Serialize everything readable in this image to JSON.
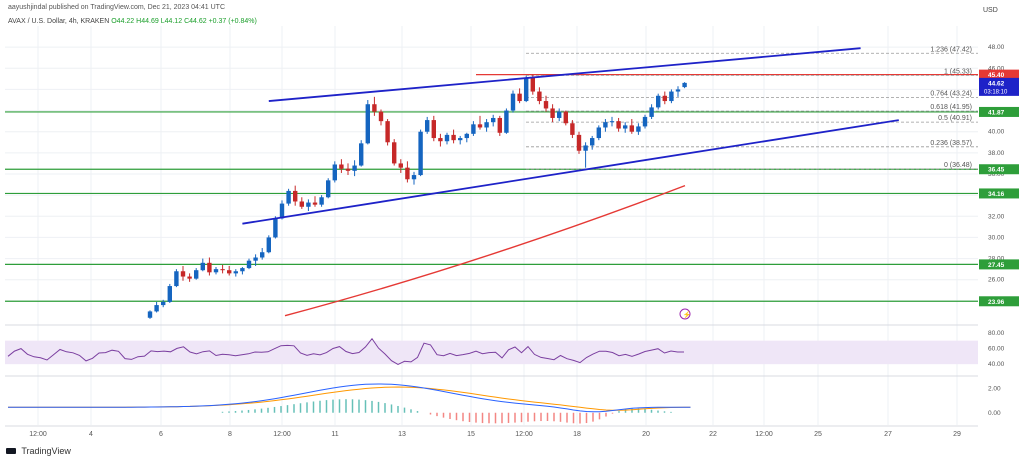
{
  "header": {
    "publisher": "aayushjindal published on TradingView.com, Dec 21, 2023 04:41 UTC",
    "symbol": "AVAX / U.S. Dollar, 4h, KRAKEN",
    "open": "O44.22",
    "high": "H44.69",
    "low": "L44.12",
    "close": "C44.62",
    "change": "+0.37 (+0.84%)",
    "currency": "USD"
  },
  "footer": {
    "brand": "TradingView"
  },
  "colors": {
    "up": "#26a69a",
    "down": "#ef5350",
    "candle_up": "#1565c0",
    "candle_down": "#c62828",
    "trendline": "#1e22c8",
    "support": "#2e9e3a",
    "ma": "#e53935",
    "resistance": "#e53935",
    "fib": "#999999",
    "rsi": "#7b3fa0",
    "rsi_band": "#efe6f7",
    "price_label": "#1e22c8"
  },
  "chart_data": {
    "type": "candlestick",
    "interval": "4h",
    "price_axis": {
      "min": 22,
      "max": 50,
      "ticks": [
        24.0,
        26.0,
        28.0,
        30.0,
        32.0,
        34.0,
        36.0,
        38.0,
        40.0,
        42.0,
        44.0,
        46.0,
        48.0
      ]
    },
    "time_axis_labels": [
      "12:00",
      "4",
      "6",
      "8",
      "12:00",
      "11",
      "13",
      "15",
      "12:00",
      "18",
      "20",
      "22",
      "12:00",
      "25",
      "27",
      "29"
    ],
    "candles": [
      [
        22.4,
        23.1,
        22.3,
        23.0
      ],
      [
        23.0,
        23.9,
        22.9,
        23.6
      ],
      [
        23.6,
        24.1,
        23.4,
        23.9
      ],
      [
        23.9,
        25.6,
        23.8,
        25.4
      ],
      [
        25.4,
        27.0,
        25.3,
        26.8
      ],
      [
        26.8,
        27.3,
        25.9,
        26.3
      ],
      [
        26.3,
        26.6,
        25.8,
        26.1
      ],
      [
        26.1,
        27.1,
        26.0,
        26.9
      ],
      [
        26.9,
        28.0,
        26.8,
        27.6
      ],
      [
        27.6,
        28.1,
        26.4,
        26.7
      ],
      [
        26.7,
        27.2,
        26.5,
        27.0
      ],
      [
        27.0,
        27.4,
        26.6,
        26.9
      ],
      [
        26.9,
        27.3,
        26.4,
        26.6
      ],
      [
        26.6,
        27.0,
        26.3,
        26.8
      ],
      [
        26.8,
        27.2,
        26.5,
        27.1
      ],
      [
        27.1,
        28.0,
        27.0,
        27.8
      ],
      [
        27.8,
        28.4,
        27.3,
        28.1
      ],
      [
        28.1,
        29.0,
        27.9,
        28.6
      ],
      [
        28.6,
        30.2,
        28.5,
        30.0
      ],
      [
        30.0,
        32.0,
        29.9,
        31.8
      ],
      [
        31.8,
        33.5,
        31.7,
        33.2
      ],
      [
        33.2,
        34.6,
        33.0,
        34.4
      ],
      [
        34.4,
        34.9,
        33.0,
        33.4
      ],
      [
        33.4,
        33.8,
        32.7,
        32.9
      ],
      [
        32.9,
        33.6,
        32.5,
        33.3
      ],
      [
        33.3,
        33.9,
        32.9,
        33.1
      ],
      [
        33.1,
        34.0,
        32.9,
        33.8
      ],
      [
        33.8,
        35.6,
        33.7,
        35.4
      ],
      [
        35.4,
        37.2,
        35.2,
        36.9
      ],
      [
        36.9,
        37.4,
        36.1,
        36.5
      ],
      [
        36.5,
        37.0,
        35.9,
        36.3
      ],
      [
        36.3,
        37.3,
        35.8,
        36.8
      ],
      [
        36.8,
        39.2,
        36.7,
        38.9
      ],
      [
        38.9,
        43.0,
        38.8,
        42.6
      ],
      [
        42.6,
        43.3,
        41.5,
        41.9
      ],
      [
        41.9,
        42.1,
        40.6,
        41.0
      ],
      [
        41.0,
        41.2,
        38.7,
        39.0
      ],
      [
        39.0,
        39.3,
        36.8,
        37.0
      ],
      [
        37.0,
        37.4,
        36.1,
        36.6
      ],
      [
        36.6,
        37.2,
        35.2,
        35.5
      ],
      [
        35.5,
        36.2,
        35.0,
        35.9
      ],
      [
        35.9,
        40.2,
        35.8,
        40.0
      ],
      [
        40.0,
        41.4,
        39.8,
        41.1
      ],
      [
        41.1,
        41.5,
        39.1,
        39.4
      ],
      [
        39.4,
        39.8,
        38.6,
        39.1
      ],
      [
        39.1,
        39.9,
        38.8,
        39.7
      ],
      [
        39.7,
        40.2,
        38.9,
        39.2
      ],
      [
        39.2,
        39.6,
        38.8,
        39.4
      ],
      [
        39.4,
        39.9,
        39.0,
        39.8
      ],
      [
        39.8,
        41.0,
        39.6,
        40.7
      ],
      [
        40.7,
        41.5,
        40.2,
        40.4
      ],
      [
        40.4,
        41.2,
        40.0,
        40.9
      ],
      [
        40.9,
        41.6,
        40.5,
        41.3
      ],
      [
        41.3,
        41.5,
        39.6,
        39.9
      ],
      [
        39.9,
        42.2,
        39.8,
        42.0
      ],
      [
        42.0,
        43.9,
        41.8,
        43.6
      ],
      [
        43.6,
        44.1,
        42.7,
        42.9
      ],
      [
        42.9,
        45.3,
        42.8,
        45.1
      ],
      [
        45.1,
        45.4,
        43.5,
        43.8
      ],
      [
        43.8,
        44.2,
        42.6,
        42.9
      ],
      [
        42.9,
        43.4,
        41.9,
        42.2
      ],
      [
        42.2,
        42.6,
        40.9,
        41.3
      ],
      [
        41.3,
        42.2,
        41.0,
        41.9
      ],
      [
        41.9,
        42.0,
        40.6,
        40.8
      ],
      [
        40.8,
        41.1,
        39.4,
        39.7
      ],
      [
        39.7,
        40.0,
        37.9,
        38.2
      ],
      [
        38.2,
        39.0,
        36.6,
        38.7
      ],
      [
        38.7,
        39.6,
        38.3,
        39.4
      ],
      [
        39.4,
        40.6,
        39.2,
        40.4
      ],
      [
        40.4,
        41.2,
        40.0,
        40.9
      ],
      [
        40.9,
        41.4,
        40.5,
        41.0
      ],
      [
        41.0,
        41.3,
        40.0,
        40.3
      ],
      [
        40.3,
        40.9,
        39.9,
        40.6
      ],
      [
        40.6,
        41.2,
        39.8,
        40.0
      ],
      [
        40.0,
        40.8,
        39.7,
        40.5
      ],
      [
        40.5,
        41.6,
        40.3,
        41.4
      ],
      [
        41.4,
        42.6,
        41.2,
        42.3
      ],
      [
        42.3,
        43.6,
        42.1,
        43.4
      ],
      [
        43.4,
        43.8,
        42.6,
        42.9
      ],
      [
        42.9,
        44.0,
        42.7,
        43.8
      ],
      [
        43.8,
        44.3,
        43.3,
        44.0
      ],
      [
        44.22,
        44.69,
        44.12,
        44.62
      ]
    ],
    "support_lines": [
      {
        "price": 41.87,
        "label": "41.87"
      },
      {
        "price": 36.45,
        "label": "36.45"
      },
      {
        "price": 34.16,
        "label": "34.16"
      },
      {
        "price": 27.45,
        "label": "27.45"
      },
      {
        "price": 23.96,
        "label": "23.96"
      }
    ],
    "resistance_line": {
      "price": 45.4,
      "label": "45.40"
    },
    "current_price": {
      "price": 44.62,
      "label": "44.62",
      "countdown": "03:18:10"
    },
    "fibonacci": [
      {
        "label": "1.236 (47.42)",
        "price": 47.42
      },
      {
        "label": "1 (45.33)",
        "price": 45.33
      },
      {
        "label": "0.764 (43.24)",
        "price": 43.24
      },
      {
        "label": "0.618 (41.95)",
        "price": 41.95
      },
      {
        "label": "0.5 (40.91)",
        "price": 40.91
      },
      {
        "label": "0.236 (38.57)",
        "price": 38.57
      },
      {
        "label": "0 (36.48)",
        "price": 36.48
      }
    ],
    "channel": {
      "upper": {
        "from": [
          18,
          42.9
        ],
        "to": [
          51,
          47.9
        ]
      },
      "lower": {
        "from": [
          14,
          31.3
        ],
        "to": [
          53,
          41.1
        ]
      }
    },
    "moving_average": {
      "from_price": 22.6,
      "to_price": 34.9
    },
    "rsi": {
      "axis_ticks": [
        40.0,
        60.0,
        80.0
      ],
      "band": [
        40,
        70
      ]
    },
    "macd": {
      "axis_ticks": [
        0.0,
        2.0
      ]
    },
    "grid": true
  }
}
